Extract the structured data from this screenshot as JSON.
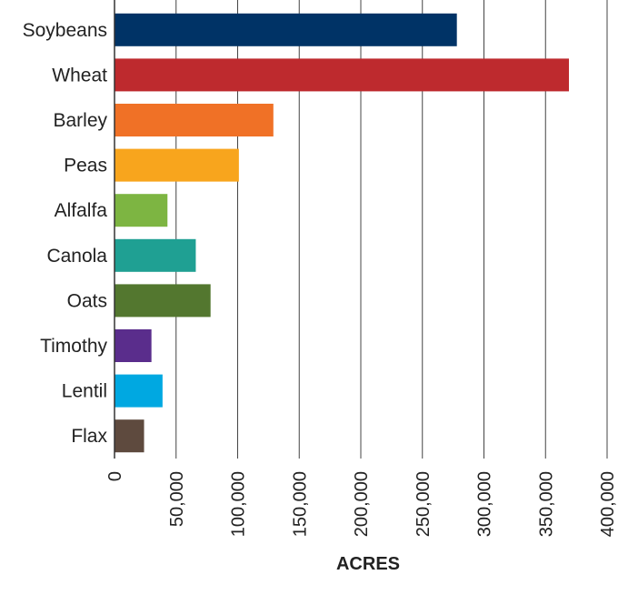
{
  "chart_data": {
    "type": "bar",
    "orientation": "horizontal",
    "categories": [
      "Soybeans",
      "Wheat",
      "Barley",
      "Peas",
      "Alfalfa",
      "Canola",
      "Oats",
      "Timothy",
      "Lentil",
      "Flax"
    ],
    "values": [
      278000,
      369000,
      129000,
      101000,
      43000,
      66000,
      78000,
      30000,
      39000,
      24000
    ],
    "colors": [
      "#003366",
      "#BE2A2E",
      "#F07126",
      "#F8A51D",
      "#7DB542",
      "#1FA093",
      "#53772F",
      "#5A2D8C",
      "#00A8E1",
      "#5E4A3E"
    ],
    "xlabel": "ACRES",
    "xlim": [
      0,
      400000
    ],
    "xticks": [
      0,
      50000,
      100000,
      150000,
      200000,
      250000,
      300000,
      350000,
      400000
    ],
    "xtick_labels": [
      "0",
      "50,000",
      "100,000",
      "150,000",
      "200,000",
      "250,000",
      "300,000",
      "350,000",
      "400,000"
    ],
    "grid": true
  }
}
